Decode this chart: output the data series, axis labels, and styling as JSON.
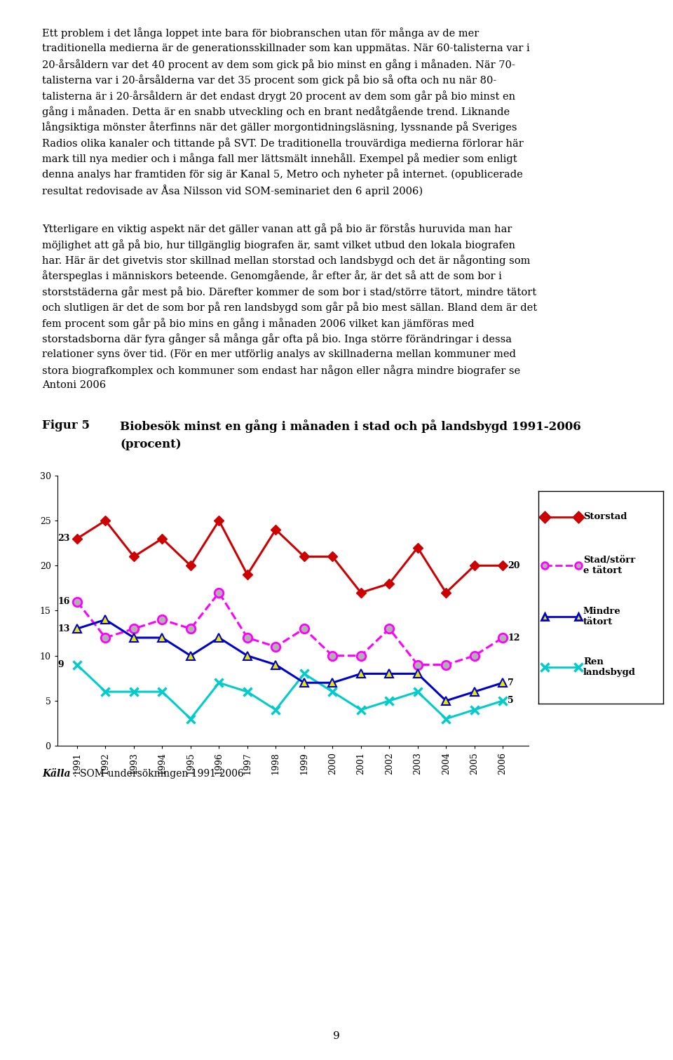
{
  "years": [
    1991,
    1992,
    1993,
    1994,
    1995,
    1996,
    1997,
    1998,
    1999,
    2000,
    2001,
    2002,
    2003,
    2004,
    2005,
    2006
  ],
  "storstad": [
    23,
    25,
    21,
    23,
    20,
    25,
    19,
    24,
    21,
    21,
    17,
    18,
    22,
    17,
    20,
    20
  ],
  "stad_storre": [
    16,
    12,
    13,
    14,
    13,
    17,
    12,
    11,
    13,
    10,
    10,
    13,
    9,
    9,
    10,
    12
  ],
  "mindre_tatort": [
    13,
    14,
    12,
    12,
    10,
    12,
    10,
    9,
    7,
    7,
    8,
    8,
    8,
    5,
    6,
    7
  ],
  "ren_landsbygd": [
    9,
    6,
    6,
    6,
    3,
    7,
    6,
    4,
    8,
    6,
    4,
    5,
    6,
    3,
    4,
    5
  ],
  "storstad_color": "#cc0000",
  "stad_storre_color": "#ff00ff",
  "mindre_tatort_color": "#0000cc",
  "ren_landsbygd_color": "#00cccc",
  "body1": "Ett problem i det långa loppet inte bara för biobranschen utan för många av de mer traditionella medierna är de generationsskillnader som kan uppmätas. När 60-talisterna var i 20-årsåldern var det 40 procent av dem som gick på bio minst en gång i månaden. När 70-talisterna var i 20-årsålderna var det 35 procent som gick på bio så ofta och nu när 80-talisterna är i 20-årsåldern är det endast drygt 20 procent av dem som går på bio minst en gång i månaden. Detta är en snabb utveckling och en brant nedåtgående trend. Liknande långsiktiga mönster återfinns när det gäller morgontidningsläsning, lyssnande på Sveriges Radios olika kanaler och tittande på SVT. De traditionella trouvärdiga medierna förlorar här mark till nya medier och i många fall mer lättsmält innehåll. Exempel på medier som enligt denna analys har framtiden för sig är Kanal 5, Metro och nyheter på internet. (opublicerade resultat redovisade av Åsa Nilsson vid SOM-seminariet den 6 april 2006)",
  "body2": "Ytterligare en viktig aspekt när det gäller vanan att gå på bio är förstås huruvida man har möjlighet att gå på bio, hur tillgänglig biografen är, samt vilket utbud den lokala biografen har. Här är det givetvis stor skillnad mellan storstad och landsbygd och det är någonting som återspeglas i människors beteende. Genomgående, år efter år, är det så att de som bor i storststäderna går mest på bio. Därefter kommer de som bor i stad/större tätort, mindre tätort och slutligen är det de som bor på ren landsbygd som går på bio mest sällan. Bland dem är det fem procent som går på bio mins en gång i månaden 2006 vilket kan jämföras med storstadsborna där fyra gånger så många går ofta på bio. Inga större förändringar i dessa relationer syns över tid. (För en mer utförlig analys av skillnaderna mellan kommuner med stora biografkomplex och kommuner som endast har någon eller några mindre biografer se Antoni 2006",
  "fig_label": "Figur 5",
  "fig_title_line1": "Biobesök minst en gång i månaden i stad och på landsbygd 1991-2006",
  "fig_title_line2": "(procent)",
  "legend_storstad": "Storstad",
  "legend_stad": "Stad/störr\ne tätort",
  "legend_mindre": "Mindre\ntätort",
  "legend_ren": "Ren\nlandsbygd",
  "source_text": "Källa",
  "source_text2": ": SOM-undersökningen 1991-2006",
  "ylim": [
    0,
    30
  ],
  "yticks": [
    0,
    5,
    10,
    15,
    20,
    25,
    30
  ],
  "page_number": "9"
}
